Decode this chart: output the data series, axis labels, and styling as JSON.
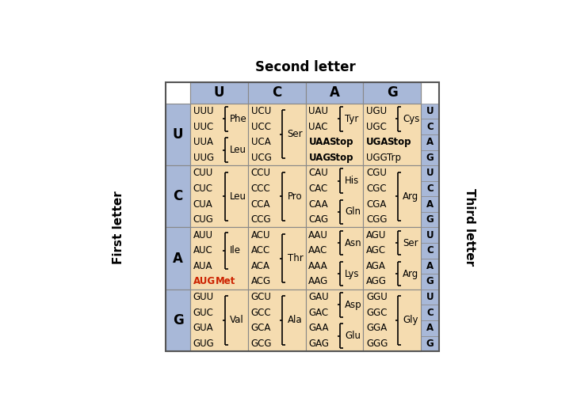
{
  "title": "Second letter",
  "first_letter_label": "First letter",
  "third_letter_label": "Third letter",
  "second_letters": [
    "U",
    "C",
    "A",
    "G"
  ],
  "first_letters": [
    "U",
    "C",
    "A",
    "G"
  ],
  "third_letters": [
    "U",
    "C",
    "A",
    "G"
  ],
  "header_bg": "#a8b8d8",
  "cell_bg": "#f5dcb0",
  "grid_color": "#888888",
  "cells": [
    {
      "row": 0,
      "col": 0,
      "codons": [
        "UUU",
        "UUC",
        "UUA",
        "UUG"
      ],
      "amino": [
        {
          "name": "Phe",
          "start": 0,
          "end": 1,
          "bold": false,
          "red": false
        },
        {
          "name": "Leu",
          "start": 2,
          "end": 3,
          "bold": false,
          "red": false
        }
      ],
      "codon_bold": [],
      "codon_red": []
    },
    {
      "row": 0,
      "col": 1,
      "codons": [
        "UCU",
        "UCC",
        "UCA",
        "UCG"
      ],
      "amino": [
        {
          "name": "Ser",
          "start": 0,
          "end": 3,
          "bold": false,
          "red": false
        }
      ],
      "codon_bold": [],
      "codon_red": []
    },
    {
      "row": 0,
      "col": 2,
      "codons": [
        "UAU",
        "UAC",
        "UAA",
        "UAG"
      ],
      "amino": [
        {
          "name": "Tyr",
          "start": 0,
          "end": 1,
          "bold": false,
          "red": false
        }
      ],
      "stop_inline": [
        {
          "codon_idx": 2,
          "label": "Stop"
        },
        {
          "codon_idx": 3,
          "label": "Stop"
        }
      ],
      "codon_bold": [
        2,
        3
      ],
      "codon_red": []
    },
    {
      "row": 0,
      "col": 3,
      "codons": [
        "UGU",
        "UGC",
        "UGA",
        "UGG"
      ],
      "amino": [
        {
          "name": "Cys",
          "start": 0,
          "end": 1,
          "bold": false,
          "red": false
        }
      ],
      "stop_inline": [
        {
          "codon_idx": 2,
          "label": "Stop"
        }
      ],
      "trp_inline": [
        {
          "codon_idx": 3,
          "label": "Trp"
        }
      ],
      "codon_bold": [
        2
      ],
      "codon_red": []
    },
    {
      "row": 1,
      "col": 0,
      "codons": [
        "CUU",
        "CUC",
        "CUA",
        "CUG"
      ],
      "amino": [
        {
          "name": "Leu",
          "start": 0,
          "end": 3,
          "bold": false,
          "red": false
        }
      ],
      "codon_bold": [],
      "codon_red": []
    },
    {
      "row": 1,
      "col": 1,
      "codons": [
        "CCU",
        "CCC",
        "CCA",
        "CCG"
      ],
      "amino": [
        {
          "name": "Pro",
          "start": 0,
          "end": 3,
          "bold": false,
          "red": false
        }
      ],
      "codon_bold": [],
      "codon_red": []
    },
    {
      "row": 1,
      "col": 2,
      "codons": [
        "CAU",
        "CAC",
        "CAA",
        "CAG"
      ],
      "amino": [
        {
          "name": "His",
          "start": 0,
          "end": 1,
          "bold": false,
          "red": false
        },
        {
          "name": "Gln",
          "start": 2,
          "end": 3,
          "bold": false,
          "red": false
        }
      ],
      "codon_bold": [],
      "codon_red": []
    },
    {
      "row": 1,
      "col": 3,
      "codons": [
        "CGU",
        "CGC",
        "CGA",
        "CGG"
      ],
      "amino": [
        {
          "name": "Arg",
          "start": 0,
          "end": 3,
          "bold": false,
          "red": false
        }
      ],
      "codon_bold": [],
      "codon_red": []
    },
    {
      "row": 2,
      "col": 0,
      "codons": [
        "AUU",
        "AUC",
        "AUA",
        "AUG"
      ],
      "amino": [
        {
          "name": "Ile",
          "start": 0,
          "end": 2,
          "bold": false,
          "red": false
        },
        {
          "name": "Met",
          "start": 3,
          "end": 3,
          "bold": false,
          "red": true
        }
      ],
      "codon_bold": [],
      "codon_red": [
        3
      ]
    },
    {
      "row": 2,
      "col": 1,
      "codons": [
        "ACU",
        "ACC",
        "ACA",
        "ACG"
      ],
      "amino": [
        {
          "name": "Thr",
          "start": 0,
          "end": 3,
          "bold": false,
          "red": false
        }
      ],
      "codon_bold": [],
      "codon_red": []
    },
    {
      "row": 2,
      "col": 2,
      "codons": [
        "AAU",
        "AAC",
        "AAA",
        "AAG"
      ],
      "amino": [
        {
          "name": "Asn",
          "start": 0,
          "end": 1,
          "bold": false,
          "red": false
        },
        {
          "name": "Lys",
          "start": 2,
          "end": 3,
          "bold": false,
          "red": false
        }
      ],
      "codon_bold": [],
      "codon_red": []
    },
    {
      "row": 2,
      "col": 3,
      "codons": [
        "AGU",
        "AGC",
        "AGA",
        "AGG"
      ],
      "amino": [
        {
          "name": "Ser",
          "start": 0,
          "end": 1,
          "bold": false,
          "red": false
        },
        {
          "name": "Arg",
          "start": 2,
          "end": 3,
          "bold": false,
          "red": false
        }
      ],
      "codon_bold": [],
      "codon_red": []
    },
    {
      "row": 3,
      "col": 0,
      "codons": [
        "GUU",
        "GUC",
        "GUA",
        "GUG"
      ],
      "amino": [
        {
          "name": "Val",
          "start": 0,
          "end": 3,
          "bold": false,
          "red": false
        }
      ],
      "codon_bold": [],
      "codon_red": []
    },
    {
      "row": 3,
      "col": 1,
      "codons": [
        "GCU",
        "GCC",
        "GCA",
        "GCG"
      ],
      "amino": [
        {
          "name": "Ala",
          "start": 0,
          "end": 3,
          "bold": false,
          "red": false
        }
      ],
      "codon_bold": [],
      "codon_red": []
    },
    {
      "row": 3,
      "col": 2,
      "codons": [
        "GAU",
        "GAC",
        "GAA",
        "GAG"
      ],
      "amino": [
        {
          "name": "Asp",
          "start": 0,
          "end": 1,
          "bold": false,
          "red": false
        },
        {
          "name": "Glu",
          "start": 2,
          "end": 3,
          "bold": false,
          "red": false
        }
      ],
      "codon_bold": [],
      "codon_red": []
    },
    {
      "row": 3,
      "col": 3,
      "codons": [
        "GGU",
        "GGC",
        "GGA",
        "GGG"
      ],
      "amino": [
        {
          "name": "Gly",
          "start": 0,
          "end": 3,
          "bold": false,
          "red": false
        }
      ],
      "codon_bold": [],
      "codon_red": []
    }
  ]
}
